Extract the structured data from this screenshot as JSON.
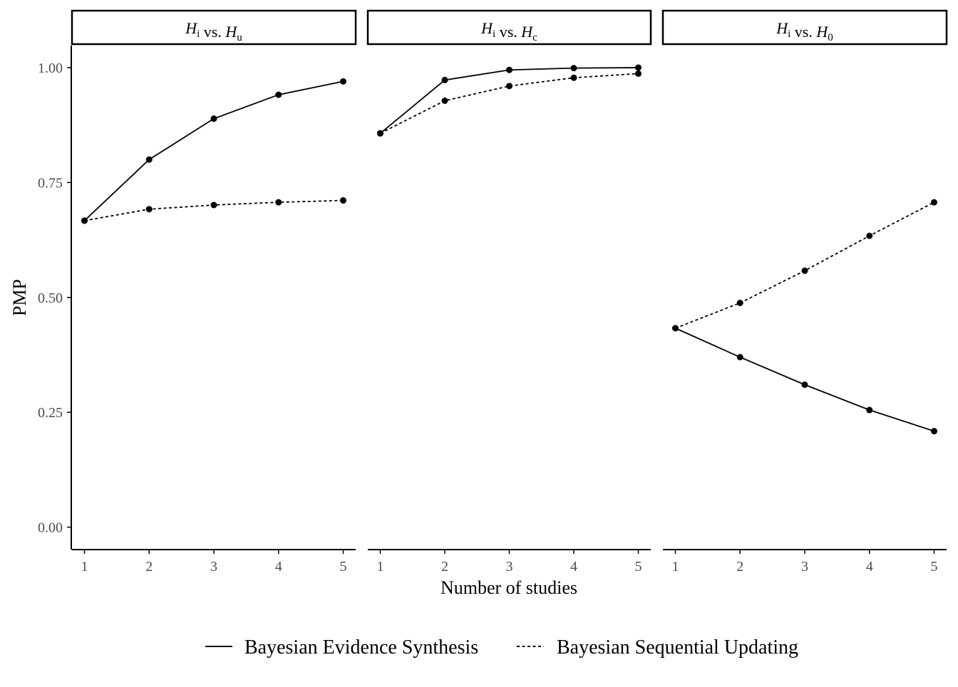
{
  "chart_data": {
    "type": "line",
    "ylabel": "PMP",
    "xlabel": "Number of studies",
    "ylim": [
      0,
      1
    ],
    "yticks": [
      "0.00",
      "0.25",
      "0.50",
      "0.75",
      "1.00"
    ],
    "ytick_values": [
      0,
      0.25,
      0.5,
      0.75,
      1.0
    ],
    "x": [
      1,
      2,
      3,
      4,
      5
    ],
    "xtick_labels": [
      "1",
      "2",
      "3",
      "4",
      "5"
    ],
    "legend_position": "bottom",
    "grid": false,
    "colors": {
      "line": "#000000",
      "strip_border": "#000000",
      "axis": "#000000",
      "tick_text": "#4d4d4d"
    },
    "legend": [
      {
        "name": "Bayesian Evidence Synthesis",
        "dash": "solid"
      },
      {
        "name": "Bayesian Sequential Updating",
        "dash": "dotted"
      }
    ],
    "panels": [
      {
        "strip": {
          "h1": "H",
          "s1": "i",
          "vs": " vs. ",
          "h2": "H",
          "s2": "u"
        },
        "series": [
          {
            "name": "Bayesian Evidence Synthesis",
            "values": [
              0.667,
              0.8,
              0.889,
              0.941,
              0.97
            ]
          },
          {
            "name": "Bayesian Sequential Updating",
            "values": [
              0.667,
              0.692,
              0.701,
              0.707,
              0.711
            ]
          }
        ]
      },
      {
        "strip": {
          "h1": "H",
          "s1": "i",
          "vs": " vs. ",
          "h2": "H",
          "s2": "c"
        },
        "series": [
          {
            "name": "Bayesian Evidence Synthesis",
            "values": [
              0.857,
              0.973,
              0.995,
              0.999,
              1.0
            ]
          },
          {
            "name": "Bayesian Sequential Updating",
            "values": [
              0.857,
              0.928,
              0.96,
              0.978,
              0.987
            ]
          }
        ]
      },
      {
        "strip": {
          "h1": "H",
          "s1": "i",
          "vs": " vs. ",
          "h2": "H",
          "s2": "0"
        },
        "series": [
          {
            "name": "Bayesian Evidence Synthesis",
            "values": [
              0.433,
              0.37,
              0.31,
              0.255,
              0.209
            ]
          },
          {
            "name": "Bayesian Sequential Updating",
            "values": [
              0.433,
              0.488,
              0.558,
              0.634,
              0.707
            ]
          }
        ]
      }
    ]
  }
}
